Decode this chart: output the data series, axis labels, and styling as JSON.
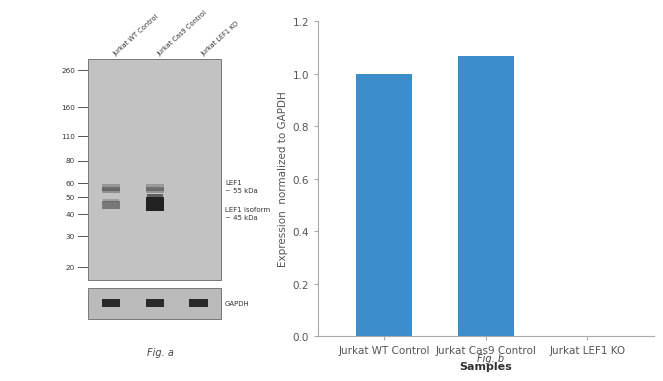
{
  "fig_a_label": "Fig. a",
  "fig_b_label": "Fig. b",
  "wb_image": {
    "bg_color": "#c0c0c0",
    "bg_color_dark": "#a8a8a8",
    "border_color": "#888888",
    "mw_markers": [
      260,
      160,
      110,
      80,
      60,
      50,
      40,
      30,
      20
    ],
    "sample_labels": [
      "Jurkat WT Control",
      "Jurkat Cas9 Control",
      "Jurkat LEF1 KO"
    ],
    "lef1_label": "LEF1\n~ 55 kDa",
    "isoform_label": "LEF1 isoform\n~ 45 kDa",
    "gapdh_label": "GAPDH"
  },
  "bar_chart": {
    "categories": [
      "Jurkat WT Control",
      "Jurkat Cas9 Control",
      "Jurkat LEF1 KO"
    ],
    "values": [
      1.0,
      1.07,
      0.0
    ],
    "bar_color": "#3b8dcc",
    "bar_width": 0.55,
    "ylim": [
      0,
      1.2
    ],
    "yticks": [
      0,
      0.2,
      0.4,
      0.6,
      0.8,
      1.0,
      1.2
    ],
    "xlabel": "Samples",
    "ylabel": "Expression  normalized to GAPDH",
    "xlabel_fontsize": 8,
    "ylabel_fontsize": 7.5,
    "tick_fontsize": 7.5,
    "axis_color": "#aaaaaa",
    "tick_color": "#555555"
  }
}
